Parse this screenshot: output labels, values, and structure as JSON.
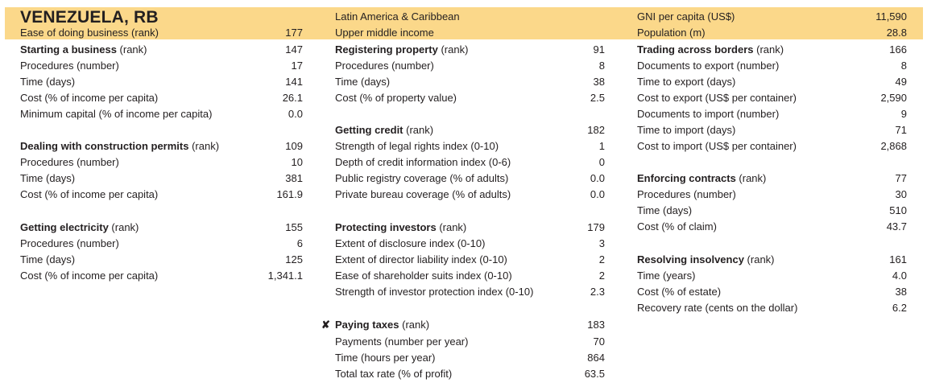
{
  "header": {
    "country": "VENEZUELA, RB",
    "ease_label": "Ease of doing business (rank)",
    "ease_value": "177",
    "region": "Latin America & Caribbean",
    "income_group": "Upper middle income",
    "gni_label": "GNI per capita (US$)",
    "gni_value": "11,590",
    "pop_label": "Population (m)",
    "pop_value": "28.8"
  },
  "col1": {
    "starting": {
      "title": "Starting a business",
      "rank_suffix": " (rank)",
      "rank": "147",
      "rows": [
        {
          "label": "Procedures (number)",
          "value": "17"
        },
        {
          "label": "Time (days)",
          "value": "141"
        },
        {
          "label": "Cost (% of income per capita)",
          "value": "26.1"
        },
        {
          "label": "Minimum capital (% of income per capita)",
          "value": "0.0"
        }
      ]
    },
    "construction": {
      "title": "Dealing with construction permits",
      "rank_suffix": " (rank)",
      "rank": "109",
      "rows": [
        {
          "label": "Procedures (number)",
          "value": "10"
        },
        {
          "label": "Time (days)",
          "value": "381"
        },
        {
          "label": "Cost (% of income per capita)",
          "value": "161.9"
        }
      ]
    },
    "electricity": {
      "title": "Getting electricity",
      "rank_suffix": " (rank)",
      "rank": "155",
      "rows": [
        {
          "label": "Procedures (number)",
          "value": "6"
        },
        {
          "label": "Time (days)",
          "value": "125"
        },
        {
          "label": "Cost (% of income per capita)",
          "value": "1,341.1"
        }
      ]
    }
  },
  "col2": {
    "property": {
      "title": "Registering property",
      "rank_suffix": " (rank)",
      "rank": "91",
      "rows": [
        {
          "label": "Procedures (number)",
          "value": "8"
        },
        {
          "label": "Time (days)",
          "value": "38"
        },
        {
          "label": "Cost (% of property value)",
          "value": "2.5"
        }
      ]
    },
    "credit": {
      "title": "Getting credit",
      "rank_suffix": " (rank)",
      "rank": "182",
      "rows": [
        {
          "label": "Strength of legal rights index (0-10)",
          "value": "1"
        },
        {
          "label": "Depth of credit information index (0-6)",
          "value": "0"
        },
        {
          "label": "Public registry coverage (% of adults)",
          "value": "0.0"
        },
        {
          "label": "Private bureau coverage (% of adults)",
          "value": "0.0"
        }
      ]
    },
    "investors": {
      "title": "Protecting investors",
      "rank_suffix": " (rank)",
      "rank": "179",
      "rows": [
        {
          "label": "Extent of disclosure index (0-10)",
          "value": "3"
        },
        {
          "label": "Extent of director liability index (0-10)",
          "value": "2"
        },
        {
          "label": "Ease of shareholder suits index (0-10)",
          "value": "2"
        },
        {
          "label": "Strength of investor protection index (0-10)",
          "value": "2.3"
        }
      ]
    },
    "taxes": {
      "flag": "✘",
      "title": "Paying taxes",
      "rank_suffix": " (rank)",
      "rank": "183",
      "rows": [
        {
          "label": "Payments (number per year)",
          "value": "70"
        },
        {
          "label": "Time (hours per year)",
          "value": "864"
        },
        {
          "label": "Total tax rate (% of profit)",
          "value": "63.5"
        }
      ]
    }
  },
  "col3": {
    "trading": {
      "title": "Trading across borders",
      "rank_suffix": " (rank)",
      "rank": "166",
      "rows": [
        {
          "label": "Documents to export (number)",
          "value": "8"
        },
        {
          "label": "Time to export (days)",
          "value": "49"
        },
        {
          "label": "Cost to export (US$ per container)",
          "value": "2,590"
        },
        {
          "label": "Documents to import (number)",
          "value": "9"
        },
        {
          "label": "Time to import (days)",
          "value": "71"
        },
        {
          "label": "Cost to import (US$ per container)",
          "value": "2,868"
        }
      ]
    },
    "contracts": {
      "title": "Enforcing contracts",
      "rank_suffix": " (rank)",
      "rank": "77",
      "rows": [
        {
          "label": "Procedures (number)",
          "value": "30"
        },
        {
          "label": "Time (days)",
          "value": "510"
        },
        {
          "label": "Cost (% of claim)",
          "value": "43.7"
        }
      ]
    },
    "insolvency": {
      "title": "Resolving insolvency",
      "rank_suffix": " (rank)",
      "rank": "161",
      "rows": [
        {
          "label": "Time (years)",
          "value": "4.0"
        },
        {
          "label": "Cost (% of estate)",
          "value": "38"
        },
        {
          "label": "Recovery rate (cents on the dollar)",
          "value": "6.2"
        }
      ]
    }
  }
}
